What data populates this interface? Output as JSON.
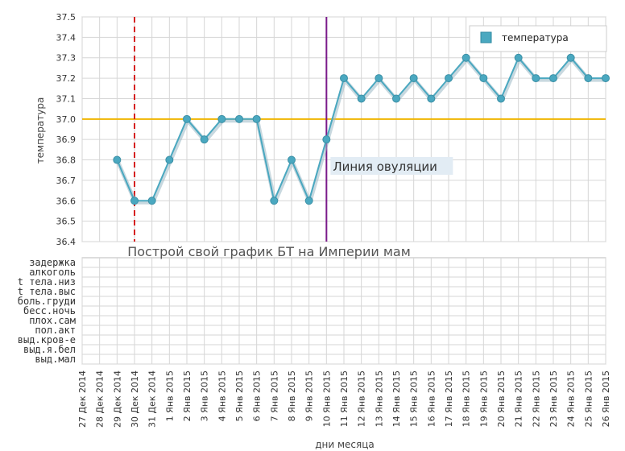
{
  "chart_data": {
    "type": "line",
    "ylabel": "температура",
    "xlabel": "дни месяца",
    "ylim": [
      36.4,
      37.5
    ],
    "yticks": [
      "36.4",
      "36.5",
      "36.6",
      "36.7",
      "36.8",
      "36.9",
      "37.0",
      "37.1",
      "37.2",
      "37.3",
      "37.4",
      "37.5"
    ],
    "categories": [
      "27 Дек 2014",
      "28 Дек 2014",
      "29 Дек 2014",
      "30 Дек 2014",
      "31 Дек 2014",
      "1 Янв 2015",
      "2 Янв 2015",
      "3 Янв 2015",
      "4 Янв 2015",
      "5 Янв 2015",
      "6 Янв 2015",
      "7 Янв 2015",
      "8 Янв 2015",
      "9 Янв 2015",
      "10 Янв 2015",
      "11 Янв 2015",
      "12 Янв 2015",
      "13 Янв 2015",
      "14 Янв 2015",
      "15 Янв 2015",
      "16 Янв 2015",
      "17 Янв 2015",
      "18 Янв 2015",
      "19 Янв 2015",
      "20 Янв 2015",
      "21 Янв 2015",
      "22 Янв 2015",
      "23 Янв 2015",
      "24 Янв 2015",
      "25 Янв 2015",
      "26 Янв 2015"
    ],
    "series": [
      {
        "name": "температура",
        "color": "#4aa8c0",
        "values": [
          null,
          null,
          36.8,
          36.6,
          36.6,
          36.8,
          37.0,
          36.9,
          37.0,
          37.0,
          37.0,
          36.6,
          36.8,
          36.6,
          36.9,
          37.2,
          37.1,
          37.2,
          37.1,
          37.2,
          37.1,
          37.2,
          37.3,
          37.2,
          37.1,
          37.3,
          37.2,
          37.2,
          37.3,
          37.2,
          37.2
        ]
      }
    ],
    "reference_line": {
      "value": 37.0,
      "color": "#f0b400"
    },
    "markers": [
      {
        "category": "30 Дек 2014",
        "style": "dashed",
        "color": "#d62020"
      },
      {
        "category": "10 Янв 2015",
        "style": "solid",
        "color": "#7a1a8a",
        "label": "Линия овуляции"
      }
    ],
    "symptom_rows": [
      "задержка",
      "алкоголь",
      "t тела.низ",
      "t тела.выс",
      "боль.груди",
      "бесс.ночь",
      "плох.сам",
      "пол.акт",
      "выд.кров-е",
      "выд.я.бел",
      "выд.мал"
    ],
    "legend": {
      "position": "top-right"
    },
    "grid": true
  },
  "watermark": "Построй свой график БТ на Империи мам"
}
